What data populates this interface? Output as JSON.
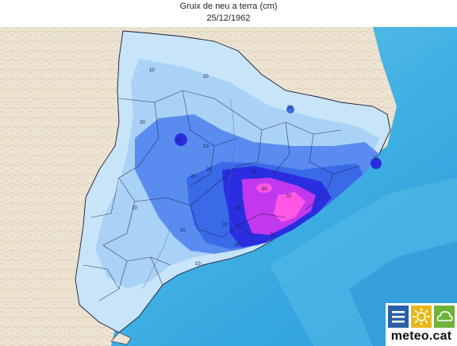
{
  "title": "Gruix de neu a terra (cm)",
  "date": "25/12/1962",
  "logo_text": "meteo.cat",
  "contour_labels": [
    {
      "text": "10",
      "near": "pyrenees-northwest"
    },
    {
      "text": "10",
      "near": "pyrenees-north"
    },
    {
      "text": "20",
      "near": "pre-pyrenees-west"
    },
    {
      "text": "20",
      "near": "pre-pyrenees-center"
    },
    {
      "text": "10",
      "near": "central"
    },
    {
      "text": "20",
      "near": "girona-east"
    },
    {
      "text": "20",
      "near": "costa-brava"
    },
    {
      "text": "20",
      "near": "central-plain"
    },
    {
      "text": "20",
      "near": "central-east"
    },
    {
      "text": "70",
      "near": "vallès"
    },
    {
      "text": "90",
      "near": "barcelona-north"
    },
    {
      "text": "70",
      "near": "maresme"
    },
    {
      "text": "10",
      "near": "lleida-west"
    },
    {
      "text": "20",
      "near": "lleida-south"
    },
    {
      "text": "20",
      "near": "penedès"
    },
    {
      "text": "30",
      "near": "anoia"
    },
    {
      "text": "30",
      "near": "barcelona-coast"
    },
    {
      "text": "10",
      "near": "tarragona"
    },
    {
      "text": "20",
      "near": "garraf"
    }
  ],
  "colors": {
    "sea_light": "#7cc9ea",
    "sea_mid": "#3fb1e3",
    "sea_deep": "#2b9cdc",
    "land_outside": "#ece3d2",
    "snow_5": "#c8e4f8",
    "snow_10": "#a9d2f6",
    "snow_20": "#5a8cf0",
    "snow_30": "#3a6ae8",
    "snow_50": "#2a2ee0",
    "snow_70": "#c238ee",
    "snow_90": "#ff57e5",
    "borders": "#1a1a3a"
  }
}
